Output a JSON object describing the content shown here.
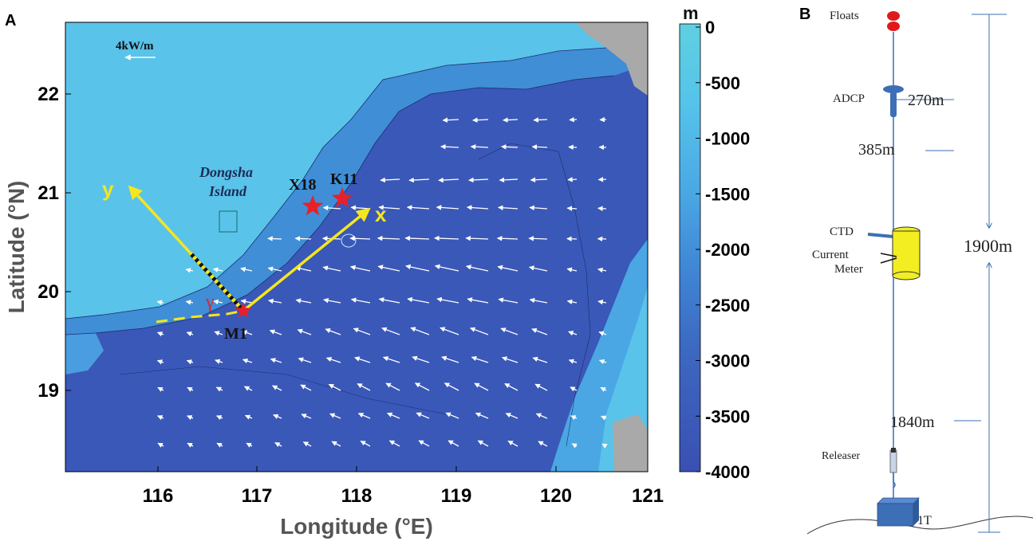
{
  "panel_a": {
    "label": "A",
    "xlabel": "Longitude (°E)",
    "ylabel": "Latitude (°N)",
    "xticks": [
      "116",
      "117",
      "118",
      "119",
      "120",
      "121"
    ],
    "yticks": [
      "22",
      "21",
      "20",
      "19"
    ],
    "colorbar_unit": "m",
    "colorbar_ticks": [
      "0",
      "-500",
      "-1000",
      "-1500",
      "-2000",
      "-2500",
      "-3000",
      "-3500",
      "-4000"
    ],
    "scale_label": "4kW/m",
    "island_label_1": "Dongsha",
    "island_label_2": "Island",
    "stations": [
      "X18",
      "K11",
      "M1"
    ],
    "axis_x_label": "x",
    "axis_y_label": "y",
    "angle_label": "γ",
    "colors": {
      "shallow": "#59c3ea",
      "mid": "#3f8ed6",
      "deep": "#3a58b8",
      "land": "#a9a9a9",
      "axis_arrow": "#f5e61e",
      "star": "#e8202a"
    }
  },
  "panel_b": {
    "label": "B",
    "components": [
      "Floats",
      "ADCP",
      "CTD",
      "Current",
      "Meter",
      "Releaser",
      "1T"
    ],
    "depths": [
      "270m",
      "385m",
      "1900m",
      "1840m"
    ],
    "colors": {
      "float": "#e01a1a",
      "instrument": "#3c6fb5",
      "meter_body": "#f2ee22"
    }
  }
}
